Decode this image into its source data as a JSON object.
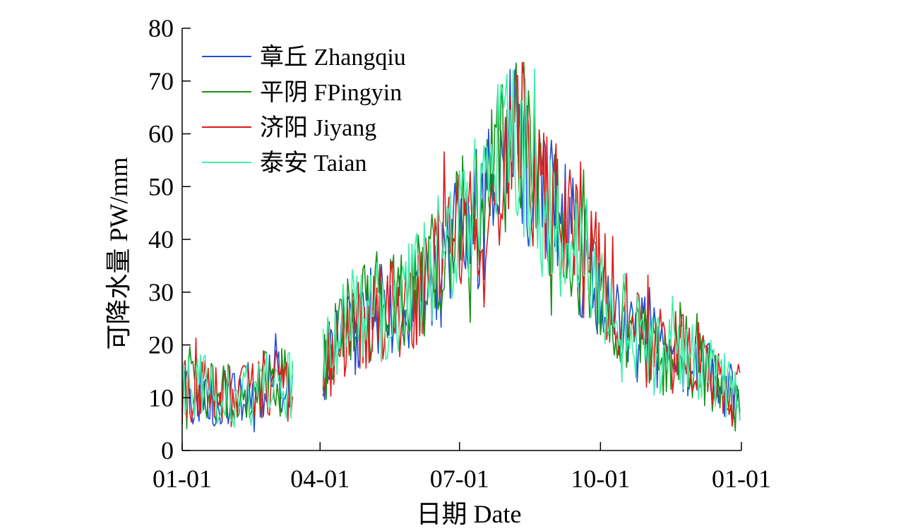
{
  "chart_data": {
    "type": "line",
    "title": "",
    "xlabel": "日期 Date",
    "ylabel": "可降水量 PW/mm",
    "ylim": [
      0,
      80
    ],
    "yticks": [
      0,
      10,
      20,
      30,
      40,
      50,
      60,
      70,
      80
    ],
    "ytick_labels": [
      "0",
      "10",
      "20",
      "30",
      "40",
      "50",
      "60",
      "70",
      "80"
    ],
    "xlim_day_of_year": [
      0,
      365
    ],
    "xticks_day_of_year": [
      0,
      90,
      181,
      273,
      365
    ],
    "xtick_labels": [
      "01-01",
      "04-01",
      "07-01",
      "10-01",
      "01-01"
    ],
    "legend_position": "top-left",
    "data_gap_days": [
      72,
      92
    ],
    "series": [
      {
        "name": "章丘 Zhangqiu",
        "color": "#1f4fd6",
        "days": [
          0,
          15,
          30,
          45,
          60,
          72,
          92,
          105,
          120,
          135,
          150,
          165,
          180,
          195,
          210,
          220,
          235,
          250,
          265,
          280,
          295,
          310,
          325,
          340,
          355,
          364
        ],
        "values": [
          10,
          11,
          10,
          9,
          13,
          12,
          15,
          22,
          25,
          26,
          29,
          33,
          40,
          45,
          55,
          58,
          48,
          42,
          35,
          28,
          22,
          19,
          18,
          15,
          12,
          9
        ]
      },
      {
        "name": "平阴 FPingyin",
        "color": "#1a8f1a",
        "days": [
          0,
          15,
          30,
          45,
          60,
          72,
          92,
          105,
          120,
          135,
          150,
          165,
          180,
          195,
          210,
          220,
          235,
          250,
          265,
          280,
          295,
          310,
          325,
          340,
          355,
          364
        ],
        "values": [
          10,
          12,
          11,
          10,
          14,
          12,
          16,
          23,
          26,
          27,
          30,
          35,
          42,
          46,
          56,
          60,
          48,
          41,
          34,
          28,
          22,
          18,
          20,
          15,
          11,
          9
        ]
      },
      {
        "name": "济阳 Jiyang",
        "color": "#e01a1a",
        "days": [
          0,
          15,
          30,
          45,
          60,
          72,
          92,
          105,
          120,
          135,
          150,
          165,
          180,
          195,
          210,
          220,
          235,
          250,
          265,
          280,
          295,
          310,
          325,
          340,
          355,
          364
        ],
        "values": [
          11,
          11,
          10,
          10,
          13,
          11,
          15,
          22,
          24,
          26,
          28,
          34,
          41,
          45,
          57,
          62,
          49,
          42,
          36,
          30,
          22,
          19,
          19,
          16,
          11,
          10
        ]
      },
      {
        "name": "泰安 Taian",
        "color": "#3ff0a8",
        "days": [
          0,
          15,
          30,
          45,
          60,
          72,
          92,
          105,
          120,
          135,
          150,
          165,
          180,
          195,
          210,
          220,
          235,
          250,
          265,
          280,
          295,
          310,
          325,
          340,
          355,
          364
        ],
        "values": [
          12,
          12,
          11,
          10,
          14,
          12,
          17,
          24,
          26,
          27,
          30,
          36,
          42,
          47,
          56,
          59,
          47,
          41,
          35,
          28,
          22,
          18,
          18,
          15,
          12,
          10
        ]
      }
    ]
  }
}
